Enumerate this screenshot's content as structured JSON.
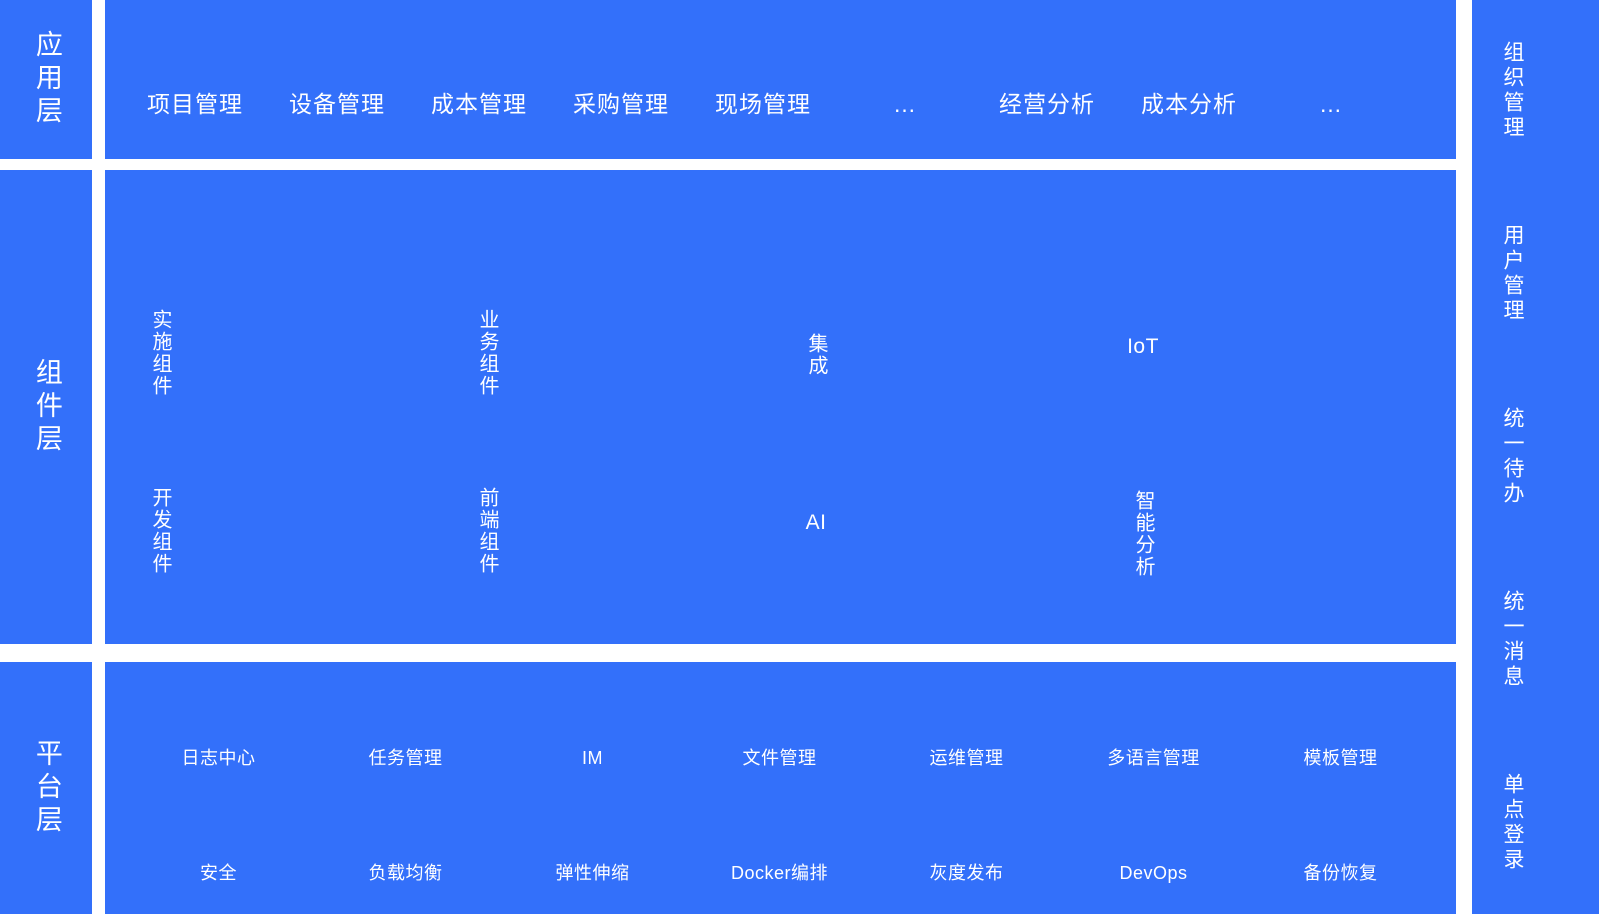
{
  "colors": {
    "primary": "#3370fa",
    "text_on_primary": "#ffffff",
    "page_background": "#ffffff"
  },
  "left_rail": {
    "layers": [
      {
        "label": "应用层"
      },
      {
        "label": "组件层"
      },
      {
        "label": "平台层"
      }
    ]
  },
  "application_layer": {
    "items": [
      "项目管理",
      "设备管理",
      "成本管理",
      "采购管理",
      "现场管理",
      "…",
      "经营分析",
      "成本分析",
      "…"
    ]
  },
  "component_layer": {
    "row_top": [
      {
        "label": "实施组件",
        "orientation": "vertical"
      },
      {
        "label": "业务组件",
        "orientation": "vertical"
      },
      {
        "label": "集成",
        "orientation": "vertical"
      },
      {
        "label": "IoT",
        "orientation": "horizontal"
      }
    ],
    "row_bottom": [
      {
        "label": "开发组件",
        "orientation": "vertical"
      },
      {
        "label": "前端组件",
        "orientation": "vertical"
      },
      {
        "label": "AI",
        "orientation": "horizontal"
      },
      {
        "label": "智能分析",
        "orientation": "vertical"
      }
    ]
  },
  "platform_layer": {
    "row_top": [
      "日志中心",
      "任务管理",
      "IM",
      "文件管理",
      "运维管理",
      "多语言管理",
      "模板管理"
    ],
    "row_bottom": [
      "安全",
      "负载均衡",
      "弹性伸缩",
      "Docker编排",
      "灰度发布",
      "DevOps",
      "备份恢复"
    ]
  },
  "right_rail": {
    "items": [
      "组织管理",
      "用户管理",
      "统一待办",
      "统一消息",
      "单点登录"
    ]
  }
}
